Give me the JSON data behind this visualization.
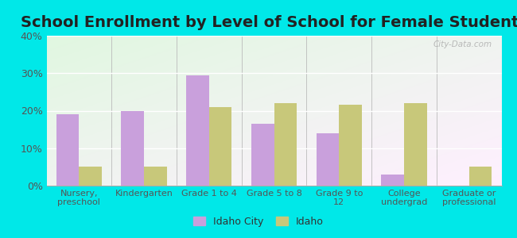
{
  "title": "School Enrollment by Level of School for Female Students",
  "categories": [
    "Nursery,\npreschool",
    "Kindergarten",
    "Grade 1 to 4",
    "Grade 5 to 8",
    "Grade 9 to\n12",
    "College\nundergrad",
    "Graduate or\nprofessional"
  ],
  "idaho_city": [
    19,
    20,
    29.5,
    16.5,
    14,
    3,
    0
  ],
  "idaho": [
    5,
    5,
    21,
    22,
    21.5,
    22,
    5
  ],
  "idaho_city_color": "#c9a0dc",
  "idaho_color": "#c8c87a",
  "background_outer": "#00e8e8",
  "ylim": [
    0,
    40
  ],
  "yticks": [
    0,
    10,
    20,
    30,
    40
  ],
  "ytick_labels": [
    "0%",
    "10%",
    "20%",
    "30%",
    "40%"
  ],
  "legend_labels": [
    "Idaho City",
    "Idaho"
  ],
  "bar_width": 0.35,
  "title_fontsize": 14,
  "watermark": "City-Data.com"
}
